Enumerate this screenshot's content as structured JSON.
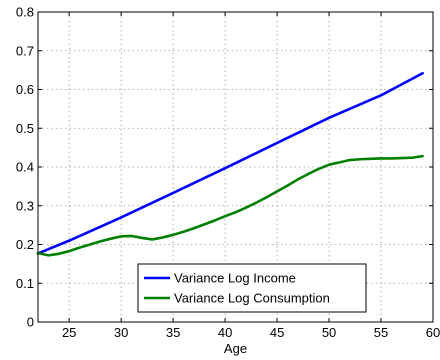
{
  "chart_data": {
    "type": "line",
    "xlabel": "Age",
    "ylabel": "",
    "xlim": [
      22,
      60
    ],
    "ylim": [
      0,
      0.8
    ],
    "x_ticks": [
      25,
      30,
      35,
      40,
      45,
      50,
      55,
      60
    ],
    "y_ticks": [
      0,
      0.1,
      0.2,
      0.3,
      0.4,
      0.5,
      0.6,
      0.7,
      0.8
    ],
    "grid": true,
    "legend_position": "bottom-center",
    "series": [
      {
        "name": "Variance Log Income",
        "color": "#0000ff",
        "x": [
          22,
          25,
          30,
          35,
          40,
          45,
          50,
          55,
          59
        ],
        "y": [
          0.177,
          0.21,
          0.27,
          0.333,
          0.397,
          0.462,
          0.527,
          0.585,
          0.642
        ]
      },
      {
        "name": "Variance Log Consumption",
        "color": "#008000",
        "x": [
          22,
          23,
          24,
          25,
          26,
          27,
          28,
          29,
          30,
          31,
          32,
          33,
          34,
          35,
          36,
          37,
          38,
          39,
          40,
          41,
          42,
          43,
          44,
          45,
          46,
          47,
          48,
          49,
          50,
          51,
          52,
          53,
          54,
          55,
          56,
          57,
          58,
          59
        ],
        "y": [
          0.178,
          0.172,
          0.176,
          0.183,
          0.192,
          0.2,
          0.208,
          0.215,
          0.221,
          0.222,
          0.217,
          0.213,
          0.218,
          0.225,
          0.233,
          0.242,
          0.252,
          0.262,
          0.273,
          0.283,
          0.295,
          0.308,
          0.322,
          0.337,
          0.352,
          0.368,
          0.382,
          0.395,
          0.406,
          0.412,
          0.418,
          0.42,
          0.421,
          0.422,
          0.422,
          0.423,
          0.424,
          0.428
        ]
      }
    ]
  }
}
